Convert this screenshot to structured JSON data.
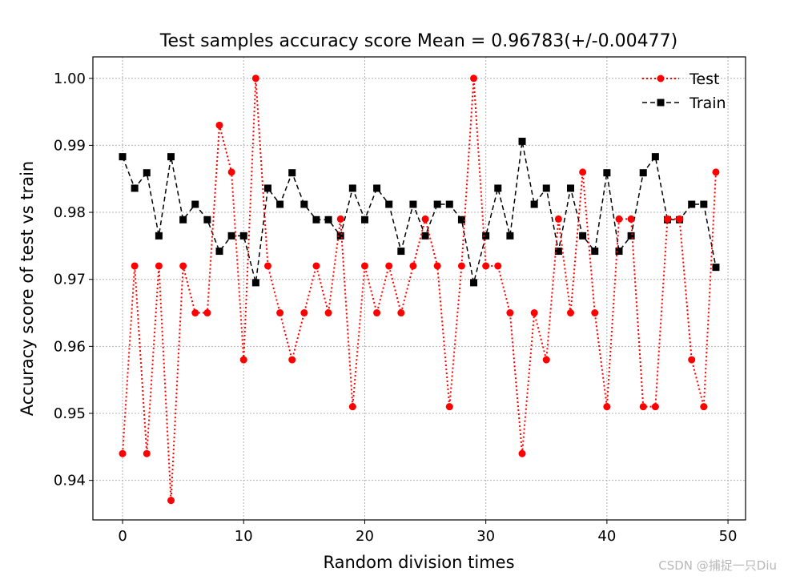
{
  "chart_data": {
    "type": "line",
    "title": "Test samples accuracy score Mean = 0.96783(+/-0.00477)",
    "xlabel": "Random division times",
    "ylabel": "Accuracy score of test vs train",
    "xlim": [
      -2.45,
      51.45
    ],
    "ylim": [
      0.9341,
      1.0032
    ],
    "xticks": [
      0,
      10,
      20,
      30,
      40,
      50
    ],
    "yticks": [
      0.94,
      0.95,
      0.96,
      0.97,
      0.98,
      0.99,
      1.0
    ],
    "xtick_labels": [
      "0",
      "10",
      "20",
      "30",
      "40",
      "50"
    ],
    "ytick_labels": [
      "0.94",
      "0.95",
      "0.96",
      "0.97",
      "0.98",
      "0.99",
      "1.00"
    ],
    "grid": true,
    "legend": "top-right",
    "x": [
      0,
      1,
      2,
      3,
      4,
      5,
      6,
      7,
      8,
      9,
      10,
      11,
      12,
      13,
      14,
      15,
      16,
      17,
      18,
      19,
      20,
      21,
      22,
      23,
      24,
      25,
      26,
      27,
      28,
      29,
      30,
      31,
      32,
      33,
      34,
      35,
      36,
      37,
      38,
      39,
      40,
      41,
      42,
      43,
      44,
      45,
      46,
      47,
      48,
      49
    ],
    "series": [
      {
        "name": "Test",
        "color": "#ff0000",
        "line": "dotted",
        "marker": "circle",
        "values": [
          0.944,
          0.972,
          0.944,
          0.972,
          0.937,
          0.972,
          0.965,
          0.965,
          0.993,
          0.986,
          0.958,
          1.0,
          0.972,
          0.965,
          0.958,
          0.965,
          0.972,
          0.965,
          0.979,
          0.951,
          0.972,
          0.965,
          0.972,
          0.965,
          0.972,
          0.979,
          0.972,
          0.951,
          0.972,
          1.0,
          0.972,
          0.972,
          0.965,
          0.944,
          0.965,
          0.958,
          0.979,
          0.965,
          0.986,
          0.965,
          0.951,
          0.979,
          0.979,
          0.951,
          0.951,
          0.979,
          0.979,
          0.958,
          0.951,
          0.986
        ]
      },
      {
        "name": "Train",
        "color": "#000000",
        "line": "dashed",
        "marker": "square",
        "values": [
          0.9883,
          0.9836,
          0.9859,
          0.9765,
          0.9883,
          0.9789,
          0.9812,
          0.9789,
          0.9742,
          0.9765,
          0.9765,
          0.9695,
          0.9836,
          0.9812,
          0.9859,
          0.9812,
          0.9789,
          0.9789,
          0.9765,
          0.9836,
          0.9789,
          0.9836,
          0.9812,
          0.9742,
          0.9812,
          0.9765,
          0.9812,
          0.9812,
          0.9789,
          0.9695,
          0.9765,
          0.9836,
          0.9765,
          0.9906,
          0.9812,
          0.9836,
          0.9742,
          0.9836,
          0.9765,
          0.9742,
          0.9859,
          0.9742,
          0.9765,
          0.9859,
          0.9883,
          0.9789,
          0.9789,
          0.9812,
          0.9812,
          0.9718
        ]
      }
    ]
  },
  "watermark": "CSDN @捕捉一只Diu"
}
